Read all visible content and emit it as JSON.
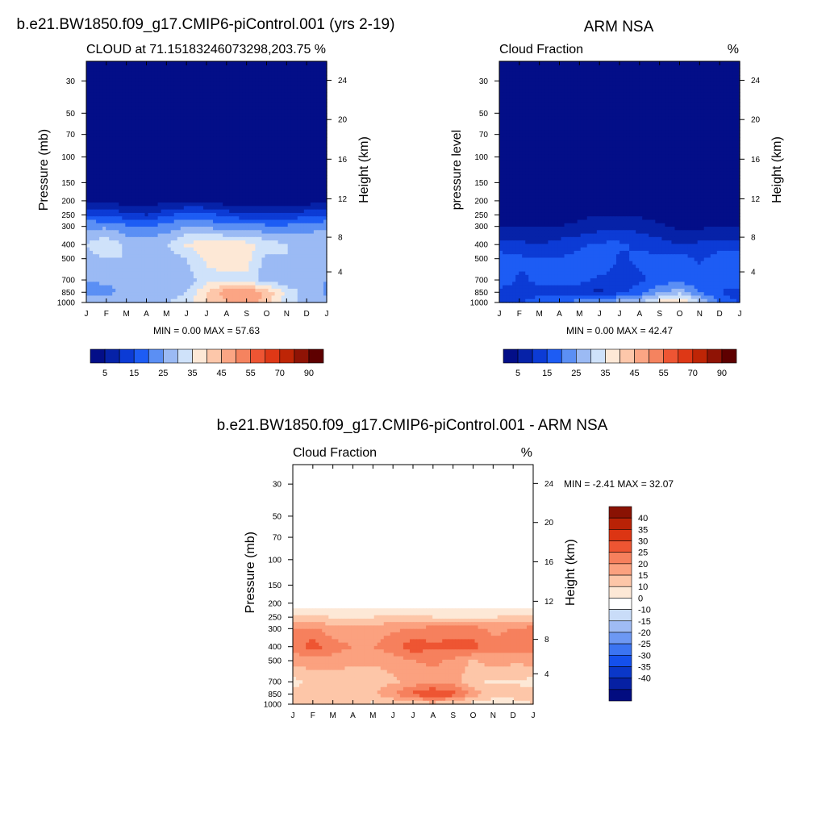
{
  "figure": {
    "top_left_title": "b.e21.BW1850.f09_g17.CMIP6-piControl.001 (yrs 2-19)",
    "top_right_title": "ARM NSA",
    "bottom_title": "b.e21.BW1850.f09_g17.CMIP6-piControl.001 - ARM NSA"
  },
  "chart_data": [
    {
      "type": "heatmap",
      "panel": "model",
      "subtitle": "CLOUD at 71.15183246073298,203.75",
      "units": "%",
      "ylabel": "Pressure (mb)",
      "y2label": "Height (km)",
      "x_ticks": [
        "J",
        "F",
        "M",
        "A",
        "M",
        "J",
        "J",
        "A",
        "S",
        "O",
        "N",
        "D",
        "J"
      ],
      "y_ticks": [
        30,
        50,
        70,
        100,
        150,
        200,
        250,
        300,
        400,
        500,
        700,
        850,
        1000
      ],
      "y2_ticks": [
        24,
        20,
        16,
        12,
        8,
        4
      ],
      "min_max_label": "MIN =   0.00 MAX =  57.63",
      "min": 0.0,
      "max": 57.63,
      "colorbar_ticks": [
        "5",
        "15",
        "25",
        "35",
        "45",
        "55",
        "70",
        "90"
      ],
      "levels": [
        0,
        5,
        10,
        15,
        20,
        25,
        30,
        35,
        40,
        45,
        50,
        55,
        60,
        70,
        80,
        90,
        100
      ],
      "pressure_levels": [
        30,
        50,
        70,
        100,
        150,
        200,
        250,
        300,
        400,
        500,
        700,
        850,
        1000
      ],
      "months": [
        "J",
        "F",
        "M",
        "A",
        "M",
        "J",
        "J",
        "A",
        "S",
        "O",
        "N",
        "D",
        "J"
      ],
      "values": [
        [
          1,
          1,
          1,
          1,
          1,
          1,
          1,
          1,
          1,
          1,
          1,
          1,
          1
        ],
        [
          1,
          1,
          1,
          1,
          1,
          1,
          1,
          1,
          1,
          1,
          1,
          1,
          1
        ],
        [
          1,
          1,
          1,
          1,
          1,
          1,
          1,
          1,
          1,
          1,
          1,
          1,
          1
        ],
        [
          1,
          1,
          1,
          1,
          1,
          1,
          1,
          1,
          1,
          1,
          1,
          1,
          1
        ],
        [
          1,
          1,
          1,
          1,
          1,
          1,
          1,
          1,
          1,
          1,
          1,
          1,
          1
        ],
        [
          3,
          3,
          2,
          2,
          3,
          3,
          3,
          2,
          2,
          2,
          2,
          2,
          3
        ],
        [
          15,
          14,
          12,
          10,
          14,
          18,
          17,
          13,
          12,
          12,
          12,
          13,
          15
        ],
        [
          24,
          24,
          21,
          20,
          22,
          25,
          24,
          22,
          22,
          21,
          21,
          22,
          24
        ],
        [
          30,
          34,
          29,
          28,
          30,
          36,
          38,
          38,
          37,
          33,
          30,
          30,
          30
        ],
        [
          28,
          30,
          30,
          28,
          27,
          30,
          36,
          37,
          37,
          28,
          30,
          29,
          28
        ],
        [
          25,
          26,
          26,
          26,
          25,
          27,
          33,
          34,
          34,
          26,
          27,
          26,
          25
        ],
        [
          24,
          23,
          27,
          28,
          27,
          30,
          40,
          48,
          50,
          44,
          33,
          28,
          24
        ],
        [
          26,
          28,
          29,
          28,
          30,
          33,
          40,
          45,
          50,
          42,
          33,
          28,
          26
        ]
      ]
    },
    {
      "type": "heatmap",
      "panel": "observations",
      "subtitle": "Cloud Fraction",
      "units": "%",
      "ylabel": "pressure level",
      "y2label": "Height (km)",
      "x_ticks": [
        "J",
        "F",
        "M",
        "A",
        "M",
        "J",
        "J",
        "A",
        "S",
        "O",
        "N",
        "D",
        "J"
      ],
      "y_ticks": [
        30,
        50,
        70,
        100,
        150,
        200,
        250,
        300,
        400,
        500,
        700,
        850,
        1000
      ],
      "y2_ticks": [
        24,
        20,
        16,
        12,
        8,
        4
      ],
      "min_max_label": "MIN =   0.00 MAX =  42.47",
      "min": 0.0,
      "max": 42.47,
      "colorbar_ticks": [
        "5",
        "15",
        "25",
        "35",
        "45",
        "55",
        "70",
        "90"
      ],
      "levels": [
        0,
        5,
        10,
        15,
        20,
        25,
        30,
        35,
        40,
        45,
        50,
        55,
        60,
        70,
        80,
        90,
        100
      ],
      "pressure_levels": [
        30,
        50,
        70,
        100,
        150,
        200,
        250,
        300,
        400,
        500,
        700,
        850,
        1000
      ],
      "months": [
        "J",
        "F",
        "M",
        "A",
        "M",
        "J",
        "J",
        "A",
        "S",
        "O",
        "N",
        "D",
        "J"
      ],
      "values": [
        [
          1,
          1,
          1,
          1,
          1,
          1,
          1,
          1,
          1,
          1,
          1,
          1,
          1
        ],
        [
          1,
          1,
          1,
          1,
          1,
          1,
          1,
          1,
          1,
          1,
          1,
          1,
          1
        ],
        [
          1,
          1,
          1,
          1,
          1,
          1,
          1,
          1,
          1,
          1,
          1,
          1,
          1
        ],
        [
          1,
          1,
          1,
          1,
          1,
          1,
          1,
          1,
          1,
          1,
          1,
          1,
          1
        ],
        [
          1,
          1,
          1,
          1,
          1,
          1,
          1,
          1,
          1,
          1,
          1,
          1,
          1
        ],
        [
          2,
          2,
          2,
          2,
          2,
          2,
          2,
          2,
          2,
          2,
          2,
          2,
          2
        ],
        [
          3,
          3,
          3,
          3,
          4,
          5,
          5,
          4,
          3,
          2,
          2,
          2,
          3
        ],
        [
          5,
          5,
          5,
          5,
          6,
          8,
          9,
          8,
          6,
          4,
          4,
          5,
          5
        ],
        [
          12,
          11,
          10,
          12,
          14,
          16,
          16,
          14,
          12,
          10,
          11,
          12,
          12
        ],
        [
          18,
          16,
          16,
          15,
          17,
          20,
          14,
          16,
          17,
          18,
          14,
          18,
          18
        ],
        [
          20,
          14,
          16,
          16,
          16,
          14,
          13,
          14,
          17,
          18,
          17,
          18,
          20
        ],
        [
          12,
          12,
          14,
          14,
          13,
          8,
          14,
          17,
          24,
          28,
          20,
          15,
          12
        ],
        [
          14,
          15,
          17,
          19,
          22,
          25,
          28,
          30,
          38,
          42,
          30,
          20,
          14
        ]
      ]
    },
    {
      "type": "heatmap",
      "panel": "difference",
      "subtitle": "Cloud Fraction",
      "units": "%",
      "ylabel": "Pressure (mb)",
      "y2label": "Height (km)",
      "x_ticks": [
        "J",
        "F",
        "M",
        "A",
        "M",
        "J",
        "J",
        "A",
        "S",
        "O",
        "N",
        "D",
        "J"
      ],
      "y_ticks": [
        30,
        50,
        70,
        100,
        150,
        200,
        250,
        300,
        400,
        500,
        700,
        850,
        1000
      ],
      "y2_ticks": [
        24,
        20,
        16,
        12,
        8,
        4
      ],
      "min_max_label": "MIN =  -2.41 MAX =  32.07",
      "min": -2.41,
      "max": 32.07,
      "colorbar_ticks": [
        "40",
        "35",
        "30",
        "25",
        "20",
        "15",
        "10",
        "0",
        "-10",
        "-15",
        "-20",
        "-25",
        "-30",
        "-35",
        "-40"
      ],
      "levels": [
        -45,
        -40,
        -35,
        -30,
        -25,
        -20,
        -15,
        -10,
        -5,
        5,
        10,
        15,
        20,
        25,
        30,
        35,
        40,
        45
      ],
      "pressure_levels": [
        30,
        50,
        70,
        100,
        150,
        200,
        250,
        300,
        400,
        500,
        700,
        850,
        1000
      ],
      "months": [
        "J",
        "F",
        "M",
        "A",
        "M",
        "J",
        "J",
        "A",
        "S",
        "O",
        "N",
        "D",
        "J"
      ],
      "values": [
        [
          0.5,
          0.5,
          0.5,
          0.5,
          0.5,
          0.5,
          0.5,
          0.5,
          0.5,
          0.5,
          0.5,
          0.5,
          0.5
        ],
        [
          0.2,
          -0.2,
          -0.3,
          -0.2,
          -0.1,
          -0.1,
          -0.1,
          -0.1,
          -0.1,
          -0.1,
          -0.1,
          -0.4,
          -0.5
        ],
        [
          0.1,
          -0.5,
          -0.5,
          -0.4,
          -0.5,
          -0.3,
          -0.2,
          -0.2,
          -0.2,
          -0.2,
          -0.2,
          -0.4,
          -0.5
        ],
        [
          -0.3,
          -0.6,
          -0.6,
          -0.6,
          -0.6,
          -0.5,
          -0.5,
          -0.6,
          -0.6,
          -0.6,
          -0.6,
          -0.6,
          -0.6
        ],
        [
          1.2,
          1.0,
          1.2,
          1.3,
          1.3,
          0.4,
          1.2,
          1.2,
          0.5,
          1.2,
          1.1,
          1.2,
          1.4
        ],
        [
          2,
          2,
          2,
          2,
          2,
          2,
          2,
          2,
          2,
          2,
          2,
          2,
          2
        ],
        [
          12,
          11,
          10,
          9,
          10,
          12,
          12,
          10,
          10,
          10,
          10,
          11,
          12
        ],
        [
          21,
          21,
          17,
          17,
          17,
          19,
          20,
          22,
          22,
          22,
          19,
          20,
          22
        ],
        [
          22,
          28,
          22,
          20,
          20,
          23,
          28,
          26,
          27,
          27,
          21,
          22,
          22
        ],
        [
          17,
          18,
          18,
          16,
          16,
          17,
          20,
          21,
          19,
          14,
          18,
          16,
          17
        ],
        [
          8,
          12,
          12,
          12,
          12,
          14,
          17,
          18,
          17,
          11,
          9,
          10,
          8
        ],
        [
          12,
          13,
          13,
          14,
          14,
          20,
          26,
          31,
          28,
          18,
          13,
          12,
          12
        ],
        [
          10,
          12,
          12,
          12,
          9,
          10,
          11,
          12,
          10,
          8,
          6,
          8,
          10
        ]
      ]
    }
  ]
}
